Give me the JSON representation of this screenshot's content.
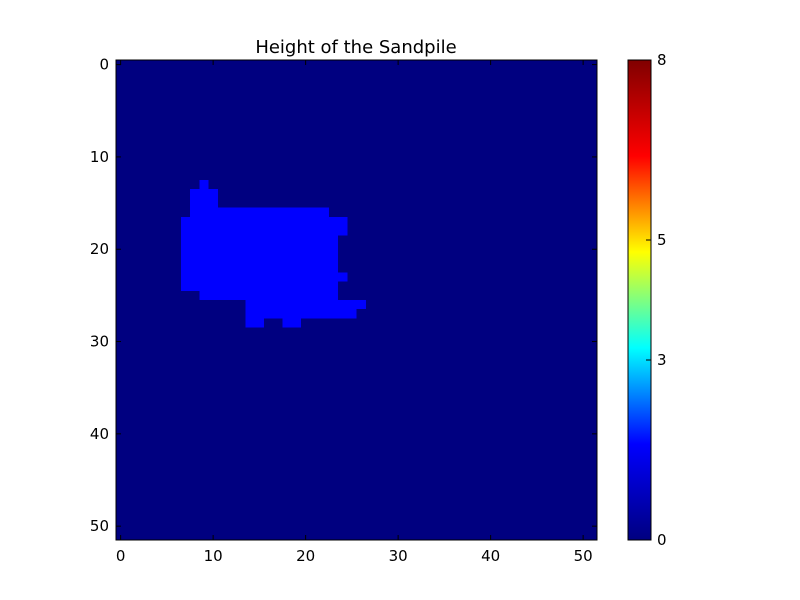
{
  "chart_data": {
    "type": "heatmap",
    "title": "Height of the Sandpile",
    "xlabel": "",
    "ylabel": "",
    "colormap": "jet",
    "grid": false,
    "shape": [
      52,
      52
    ],
    "xlim": [
      -0.5,
      51.5
    ],
    "ylim": [
      51.5,
      -0.5
    ],
    "x_ticks": [
      0,
      10,
      20,
      30,
      40,
      50
    ],
    "y_ticks": [
      0,
      10,
      20,
      30,
      40,
      50
    ],
    "x_tick_labels": [
      "0",
      "10",
      "20",
      "30",
      "40",
      "50"
    ],
    "y_tick_labels": [
      "0",
      "10",
      "20",
      "30",
      "40",
      "50"
    ],
    "background_value": 0,
    "colorbar": {
      "min": 0,
      "max": 8,
      "ticks": [
        0,
        3,
        5,
        8
      ],
      "tick_labels": [
        "0",
        "3",
        "5",
        "8"
      ],
      "colors": [
        "#000080",
        "#0000ff",
        "#00ffff",
        "#ffff00",
        "#ff0000",
        "#800000"
      ]
    },
    "nonzero_value": 1,
    "nonzero_cell_color": "#0000ff",
    "background_cell_color": "#000080",
    "nonzero_rows": [
      {
        "row": 13,
        "cols": [
          [
            9,
            9
          ]
        ]
      },
      {
        "row": 14,
        "cols": [
          [
            8,
            10
          ]
        ]
      },
      {
        "row": 15,
        "cols": [
          [
            8,
            10
          ]
        ]
      },
      {
        "row": 16,
        "cols": [
          [
            8,
            22
          ]
        ]
      },
      {
        "row": 17,
        "cols": [
          [
            7,
            24
          ]
        ]
      },
      {
        "row": 18,
        "cols": [
          [
            7,
            24
          ]
        ]
      },
      {
        "row": 19,
        "cols": [
          [
            7,
            23
          ]
        ]
      },
      {
        "row": 20,
        "cols": [
          [
            7,
            23
          ]
        ]
      },
      {
        "row": 21,
        "cols": [
          [
            7,
            23
          ]
        ]
      },
      {
        "row": 22,
        "cols": [
          [
            7,
            23
          ]
        ]
      },
      {
        "row": 23,
        "cols": [
          [
            7,
            24
          ]
        ]
      },
      {
        "row": 24,
        "cols": [
          [
            7,
            23
          ]
        ]
      },
      {
        "row": 25,
        "cols": [
          [
            9,
            23
          ]
        ]
      },
      {
        "row": 26,
        "cols": [
          [
            14,
            26
          ]
        ]
      },
      {
        "row": 27,
        "cols": [
          [
            14,
            25
          ]
        ]
      },
      {
        "row": 28,
        "cols": [
          [
            14,
            15
          ],
          [
            18,
            19
          ]
        ]
      }
    ]
  }
}
